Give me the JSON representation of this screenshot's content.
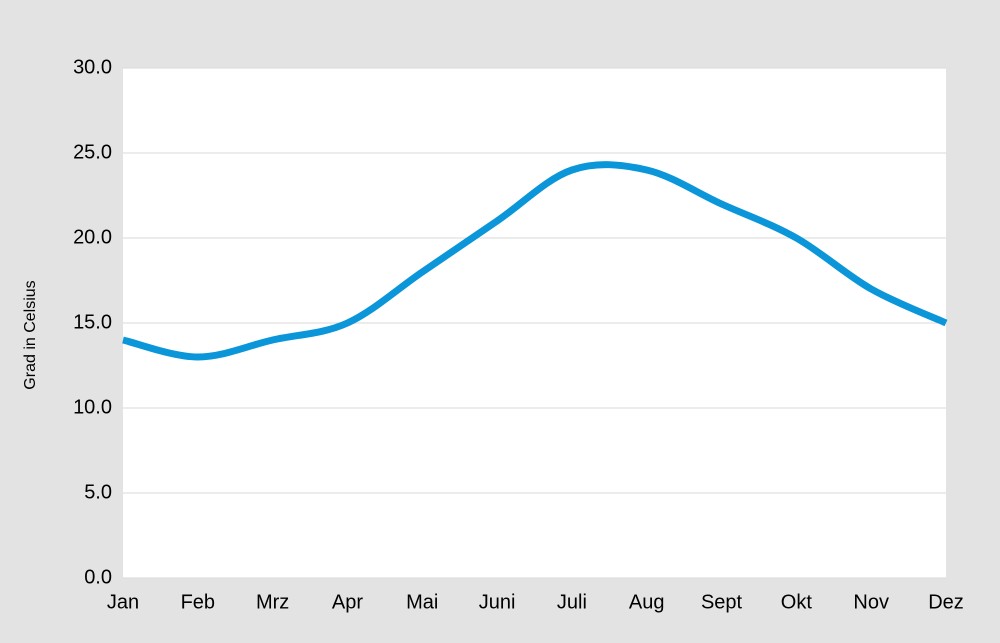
{
  "chart_data": {
    "type": "line",
    "y_label": "Grad in Celsius",
    "categories": [
      "Jan",
      "Feb",
      "Mrz",
      "Apr",
      "Mai",
      "Juni",
      "Juli",
      "Aug",
      "Sept",
      "Okt",
      "Nov",
      "Dez"
    ],
    "series": [
      {
        "color": "#0a96d9",
        "values": [
          14,
          13,
          14,
          15,
          18,
          21,
          24,
          24,
          22,
          20,
          17,
          15
        ]
      }
    ],
    "ylim": [
      0,
      30
    ],
    "yticks": [
      {
        "value": 0,
        "label": "0.0"
      },
      {
        "value": 5,
        "label": "5.0"
      },
      {
        "value": 10,
        "label": "10.0"
      },
      {
        "value": 15,
        "label": "15.0"
      },
      {
        "value": 20,
        "label": "20.0"
      },
      {
        "value": 25,
        "label": "25.0"
      },
      {
        "value": 30,
        "label": "30.0"
      }
    ],
    "grid": true,
    "smooth": true
  }
}
